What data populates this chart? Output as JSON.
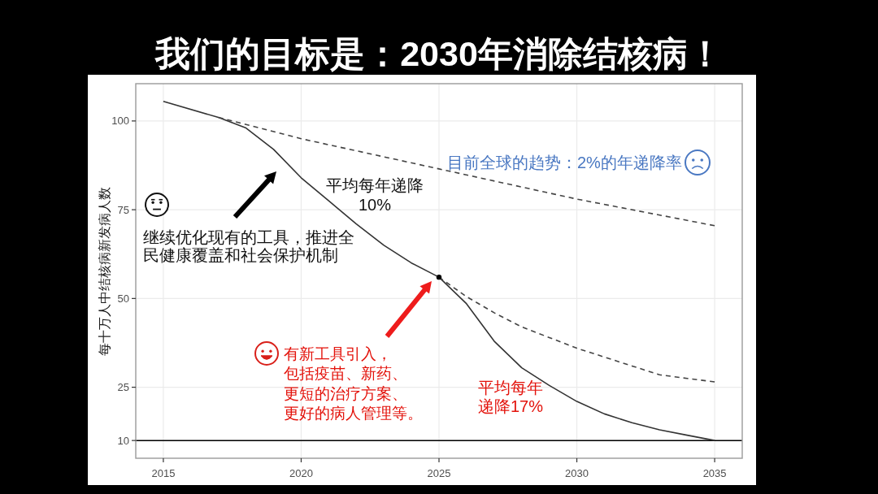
{
  "chart_data": {
    "type": "line",
    "title": "我们的目标是：2030年消除结核病！",
    "ylabel": "每十万人中结核病新发病人数",
    "xlim": [
      2014,
      2036
    ],
    "xticks": [
      2015,
      2020,
      2025,
      2030,
      2035
    ],
    "ylim": [
      5,
      110.5
    ],
    "yticks": [
      10,
      25,
      50,
      75,
      100
    ],
    "grid": true,
    "series": [
      {
        "color": "#333333",
        "line_style": "solid",
        "x": [
          2015,
          2017,
          2018,
          2019,
          2020,
          2021,
          2022,
          2023,
          2024,
          2025,
          2026,
          2027,
          2028,
          2029,
          2030,
          2031,
          2032,
          2033,
          2034,
          2035
        ],
        "values": [
          105.5,
          101,
          98,
          92,
          84,
          77.5,
          71,
          65,
          60,
          56,
          48.5,
          38,
          30.5,
          25.5,
          21,
          17.5,
          15,
          13,
          11.5,
          10
        ]
      },
      {
        "color": "#444444",
        "line_style": "dashed",
        "x": [
          2017,
          2020,
          2025,
          2030,
          2035
        ],
        "values": [
          101,
          95,
          86.5,
          78,
          70.5
        ]
      },
      {
        "color": "#444444",
        "line_style": "dashed",
        "x": [
          2025,
          2026,
          2027,
          2028,
          2029,
          2030,
          2031,
          2032,
          2033,
          2034,
          2035
        ],
        "values": [
          56,
          50.5,
          46,
          42,
          39,
          36,
          33.5,
          31,
          28.5,
          27.5,
          26.5
        ]
      },
      {
        "type": "scatter",
        "color": "#000000",
        "marker": "circle",
        "x": [
          2025
        ],
        "values": [
          56
        ]
      }
    ],
    "ref_lines": [
      {
        "axis": "y",
        "value": 10,
        "color": "#000000"
      }
    ],
    "annotations": [
      "目前全球的趋势：2%的年递降率",
      "平均每年递降10%",
      "继续优化现有的工具，推进全民健康覆盖和社会保护机制",
      "有新工具引入，包括疫苗、新药、更短的治疗方案、更好的病人管理等。",
      "平均每年递降17%"
    ]
  }
}
